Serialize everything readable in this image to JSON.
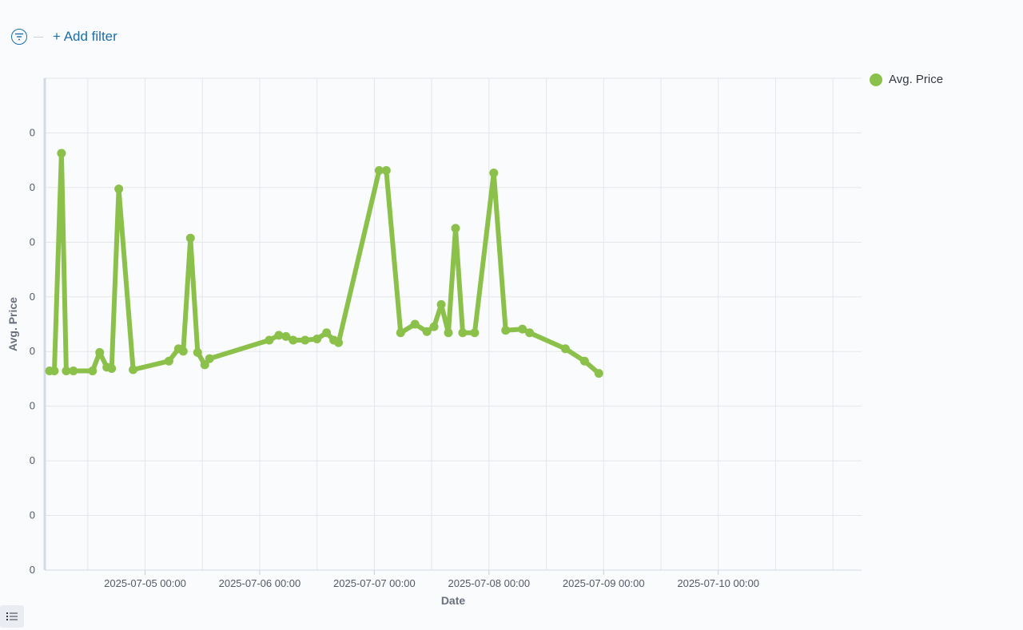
{
  "toolbar": {
    "add_filter_label": "+ Add filter",
    "filter_icon": "filter-icon"
  },
  "legend": {
    "label": "Avg. Price",
    "color": "#8bc14a"
  },
  "bottom": {
    "list_icon": "list-icon"
  },
  "chart_data": {
    "type": "line",
    "title": "",
    "xlabel": "Date",
    "ylabel": "Avg. Price",
    "x_tick_labels": [
      "2025-07-05 00:00",
      "2025-07-06 00:00",
      "2025-07-07 00:00",
      "2025-07-08 00:00",
      "2025-07-09 00:00",
      "2025-07-10 00:00"
    ],
    "y_tick_labels": [
      "0",
      "0",
      "0",
      "0",
      "0",
      "0",
      "0",
      "0",
      "0"
    ],
    "grid": true,
    "legend_position": "top-right",
    "series": [
      {
        "name": "Avg. Price",
        "color": "#8bc14a",
        "x": [
          "2025-07-04 04:00",
          "2025-07-04 05:00",
          "2025-07-04 06:30",
          "2025-07-04 07:30",
          "2025-07-04 09:00",
          "2025-07-04 13:00",
          "2025-07-04 14:30",
          "2025-07-04 16:00",
          "2025-07-04 17:00",
          "2025-07-04 18:30",
          "2025-07-04 21:30",
          "2025-07-05 05:00",
          "2025-07-05 07:00",
          "2025-07-05 08:00",
          "2025-07-05 09:30",
          "2025-07-05 11:00",
          "2025-07-05 12:30",
          "2025-07-05 13:30",
          "2025-07-06 02:00",
          "2025-07-06 04:00",
          "2025-07-06 05:30",
          "2025-07-06 07:00",
          "2025-07-06 09:30",
          "2025-07-06 12:00",
          "2025-07-06 14:00",
          "2025-07-06 15:30",
          "2025-07-06 16:30",
          "2025-07-07 01:00",
          "2025-07-07 02:30",
          "2025-07-07 05:30",
          "2025-07-07 08:30",
          "2025-07-07 11:00",
          "2025-07-07 12:30",
          "2025-07-07 14:00",
          "2025-07-07 15:30",
          "2025-07-07 17:00",
          "2025-07-07 18:30",
          "2025-07-07 21:00",
          "2025-07-08 01:00",
          "2025-07-08 03:30",
          "2025-07-08 07:00",
          "2025-07-08 08:30",
          "2025-07-08 16:00",
          "2025-07-08 20:00",
          "2025-07-08 23:00"
        ],
        "y": [
          0.162,
          0.162,
          0.339,
          0.162,
          0.162,
          0.162,
          0.177,
          0.165,
          0.164,
          0.31,
          0.163,
          0.17,
          0.18,
          0.178,
          0.27,
          0.177,
          0.167,
          0.172,
          0.187,
          0.191,
          0.19,
          0.187,
          0.187,
          0.188,
          0.193,
          0.187,
          0.185,
          0.325,
          0.325,
          0.193,
          0.2,
          0.194,
          0.198,
          0.216,
          0.193,
          0.278,
          0.193,
          0.193,
          0.323,
          0.195,
          0.196,
          0.193,
          0.18,
          0.17,
          0.16
        ],
        "_note_unused": null
      }
    ]
  }
}
